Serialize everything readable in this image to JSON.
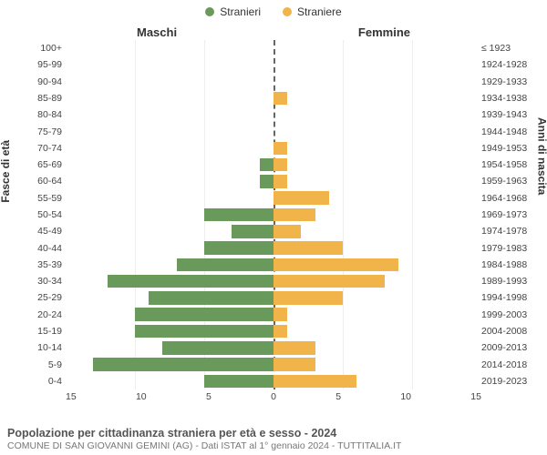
{
  "chart": {
    "type": "population-pyramid",
    "legend": [
      {
        "label": "Stranieri",
        "color": "#6a9a5b"
      },
      {
        "label": "Straniere",
        "color": "#f0b44a"
      }
    ],
    "column_titles": {
      "left": "Maschi",
      "right": "Femmine"
    },
    "y_left_title": "Fasce di età",
    "y_right_title": "Anni di nascita",
    "age_labels": [
      "100+",
      "95-99",
      "90-94",
      "85-89",
      "80-84",
      "75-79",
      "70-74",
      "65-69",
      "60-64",
      "55-59",
      "50-54",
      "45-49",
      "40-44",
      "35-39",
      "30-34",
      "25-29",
      "20-24",
      "15-19",
      "10-14",
      "5-9",
      "0-4"
    ],
    "birth_labels": [
      "≤ 1923",
      "1924-1928",
      "1929-1933",
      "1934-1938",
      "1939-1943",
      "1944-1948",
      "1949-1953",
      "1954-1958",
      "1959-1963",
      "1964-1968",
      "1969-1973",
      "1974-1978",
      "1979-1983",
      "1984-1988",
      "1989-1993",
      "1994-1998",
      "1999-2003",
      "2004-2008",
      "2009-2013",
      "2014-2018",
      "2019-2023"
    ],
    "male_values": [
      0,
      0,
      0,
      0,
      0,
      0,
      0,
      1,
      1,
      0,
      5,
      3,
      5,
      7,
      12,
      9,
      10,
      10,
      8,
      13,
      5
    ],
    "female_values": [
      0,
      0,
      0,
      1,
      0,
      0,
      1,
      1,
      1,
      4,
      3,
      2,
      5,
      9,
      8,
      5,
      1,
      1,
      3,
      3,
      6
    ],
    "bar_colors": {
      "male": "#6a9a5b",
      "female": "#f0b44a"
    },
    "xlim": 15,
    "xticks": [
      15,
      10,
      5,
      0,
      5,
      10,
      15
    ],
    "grid_color": "#eeeeee",
    "background": "#ffffff",
    "fontsize_labels": 10.5,
    "fontsize_titles": 13
  },
  "caption": {
    "line1": "Popolazione per cittadinanza straniera per età e sesso - 2024",
    "line2": "COMUNE DI SAN GIOVANNI GEMINI (AG) - Dati ISTAT al 1° gennaio 2024 - TUTTITALIA.IT"
  }
}
